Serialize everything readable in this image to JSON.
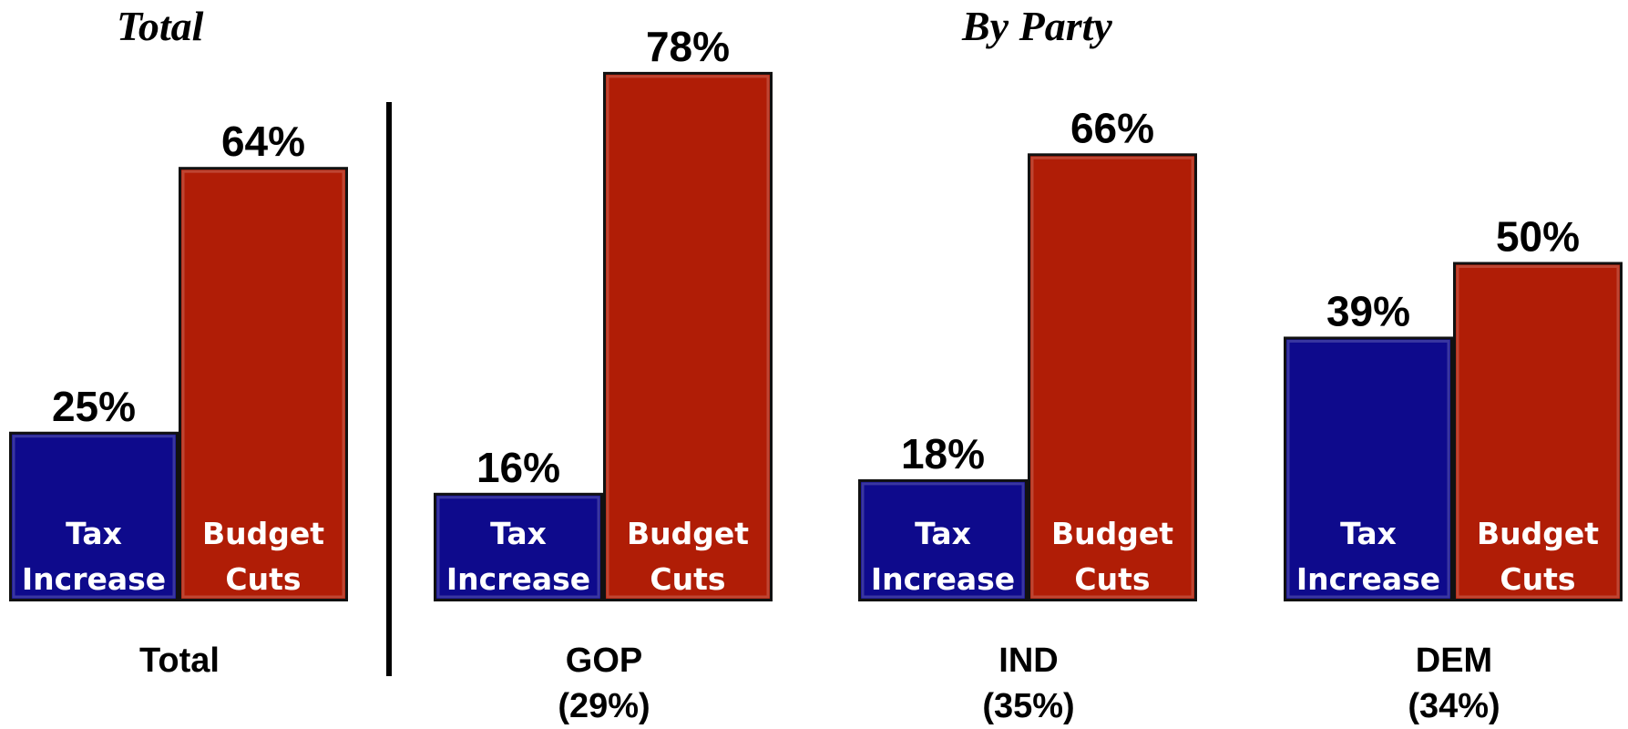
{
  "titles": {
    "total": "Total",
    "by_party": "By Party"
  },
  "colors": {
    "tax_increase": "#0e0a8c",
    "budget_cuts": "#b01d06",
    "bar_label_text": "#ffffff",
    "value_text": "#000000"
  },
  "chart_data": {
    "type": "bar",
    "unit": "%",
    "categories": [
      "Total",
      "GOP",
      "IND",
      "DEM"
    ],
    "category_sublabels": [
      "",
      "(29%)",
      "(35%)",
      "(34%)"
    ],
    "series": [
      {
        "name": "Tax Increase",
        "label_lines": [
          "Tax",
          "Increase"
        ],
        "values": [
          25,
          16,
          18,
          39
        ],
        "value_labels": [
          "25%",
          "16%",
          "18%",
          "39%"
        ]
      },
      {
        "name": "Budget Cuts",
        "label_lines": [
          "Budget",
          "Cuts"
        ],
        "values": [
          64,
          78,
          66,
          50
        ],
        "value_labels": [
          "64%",
          "78%",
          "66%",
          "50%"
        ]
      }
    ],
    "ylim": [
      0,
      100
    ],
    "grid": false,
    "legend": "none"
  }
}
